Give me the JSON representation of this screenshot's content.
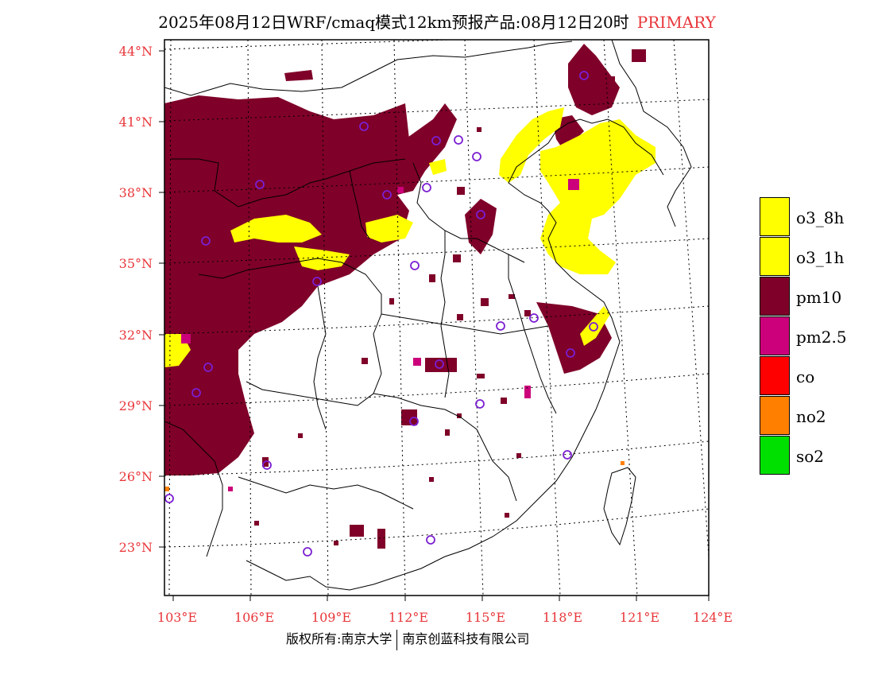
{
  "title": {
    "main": "2025年08月12日WRF/cmaq模式12km预报产品:08月12日20时",
    "tag": "PRIMARY"
  },
  "axes": {
    "lat_labels": [
      "44°N",
      "41°N",
      "38°N",
      "35°N",
      "32°N",
      "29°N",
      "26°N",
      "23°N"
    ],
    "lon_labels": [
      "103°E",
      "106°E",
      "109°E",
      "112°E",
      "115°E",
      "118°E",
      "121°E",
      "124°E"
    ],
    "label_color": "#e8363a"
  },
  "legend": {
    "items": [
      {
        "label": "o3_8h",
        "color": "#ffff00"
      },
      {
        "label": "o3_1h",
        "color": "#ffff00"
      },
      {
        "label": "pm10",
        "color": "#7f0029"
      },
      {
        "label": "pm2.5",
        "color": "#cc007a"
      },
      {
        "label": "co",
        "color": "#ff0000"
      },
      {
        "label": "no2",
        "color": "#ff7f00"
      },
      {
        "label": "so2",
        "color": "#00e000"
      }
    ]
  },
  "footer": {
    "left": "版权所有:南京大学",
    "right": "南京创蓝科技有限公司"
  },
  "map_data": {
    "pollutant_colors": {
      "pm10": "#7f0029",
      "o3": "#ffff00",
      "pm25": "#cc007a",
      "no2": "#ff7f00",
      "co": "#ff0000",
      "so2": "#00e000"
    }
  }
}
